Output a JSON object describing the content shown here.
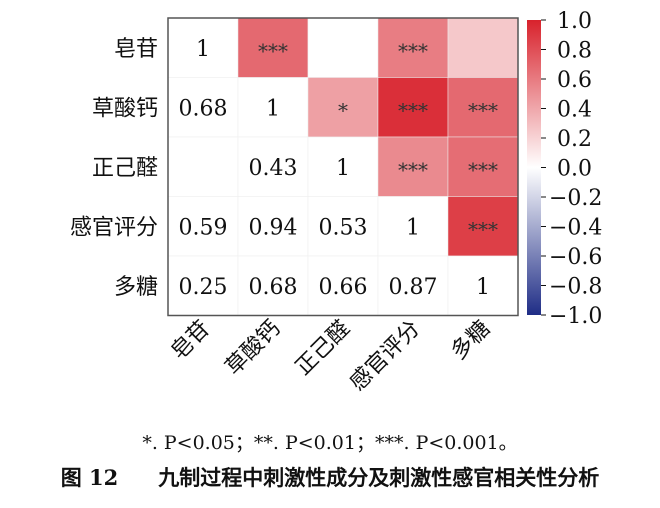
{
  "chart_data": {
    "type": "heatmap",
    "title": "",
    "labels": [
      "皂苷",
      "草酸钙",
      "正己醛",
      "感官评分",
      "多糖"
    ],
    "matrix": [
      [
        1,
        0.68,
        null,
        0.59,
        0.25
      ],
      [
        0.68,
        1,
        0.43,
        0.94,
        0.68
      ],
      [
        null,
        0.43,
        1,
        0.53,
        0.66
      ],
      [
        0.59,
        0.94,
        0.53,
        1,
        0.87
      ],
      [
        0.25,
        0.68,
        0.66,
        0.87,
        1
      ]
    ],
    "significance_upper": [
      [
        "",
        "***",
        "",
        "***",
        ""
      ],
      [
        "",
        "",
        "*",
        "***",
        "***"
      ],
      [
        "",
        "",
        "",
        "***",
        "***"
      ],
      [
        "",
        "",
        "",
        "",
        "***"
      ],
      [
        "",
        "",
        "",
        "",
        ""
      ]
    ],
    "colorbar": {
      "range": [
        -1.0,
        1.0
      ],
      "ticks": [
        "1.0",
        "0.8",
        "0.6",
        "0.4",
        "0.2",
        "0.0",
        "−0.2",
        "−0.4",
        "−0.6",
        "−0.8",
        "−1.0"
      ],
      "colors": {
        "positive": "#d8222c",
        "zero": "#ffffff",
        "negative": "#1f2d86"
      }
    }
  },
  "footnote": "*. P<0.05；**. P<0.01；***. P<0.001。",
  "caption": {
    "number": "图 12",
    "text": "九制过程中刺激性成分及刺激性感官相关性分析"
  }
}
